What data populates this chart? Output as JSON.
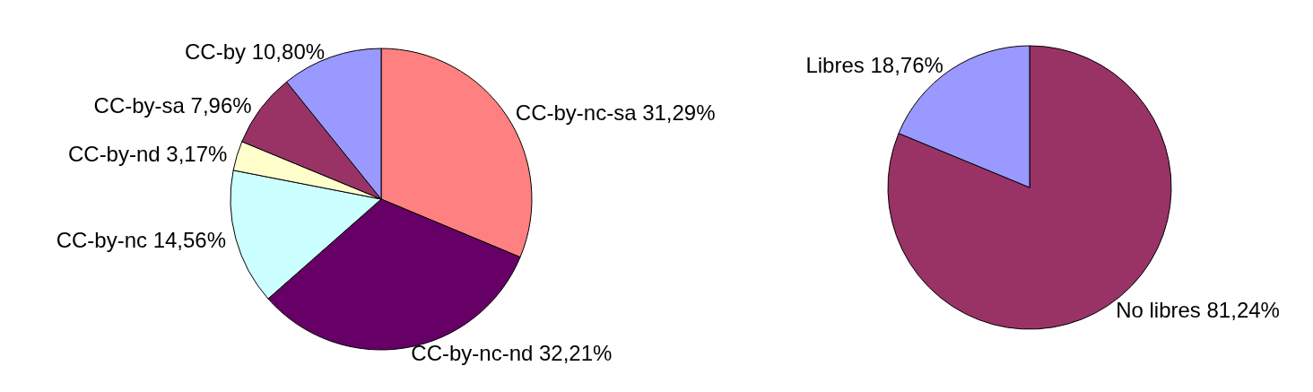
{
  "chart_data": [
    {
      "type": "pie",
      "categories": [
        "CC-by-nc-sa",
        "CC-by-nc-nd",
        "CC-by-nc",
        "CC-by-nd",
        "CC-by-sa",
        "CC-by"
      ],
      "values": [
        31.29,
        32.21,
        14.56,
        3.17,
        7.96,
        10.8
      ],
      "colors": [
        "#ff8080",
        "#660066",
        "#ccffff",
        "#ffffcc",
        "#993366",
        "#9999ff"
      ],
      "value_labels": [
        "31,29%",
        "32,21%",
        "14,56%",
        "3,17%",
        "7,96%",
        "10,80%"
      ]
    },
    {
      "type": "pie",
      "categories": [
        "No libres",
        "Libres"
      ],
      "values": [
        81.24,
        18.76
      ],
      "colors": [
        "#993366",
        "#9999ff"
      ],
      "value_labels": [
        "81,24%",
        "18,76%"
      ]
    }
  ]
}
